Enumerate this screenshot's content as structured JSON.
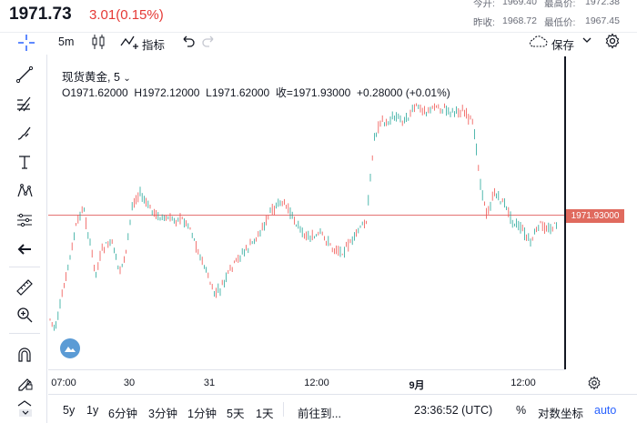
{
  "header": {
    "price": "1971.73",
    "change": "3.01(0.15%)",
    "stats": {
      "open_label": "今开:",
      "open": "1969.40",
      "high_label": "最高价:",
      "high": "1972.38",
      "prev_label": "昨收:",
      "prev": "1968.72",
      "low_label": "最低价:",
      "low": "1967.45"
    }
  },
  "toolbar": {
    "interval": "5m",
    "indicators": "指标",
    "save": "保存"
  },
  "legend": {
    "symbol": "现货黄金, 5",
    "o": "O1971.62000",
    "h": "H1972.12000",
    "l": "L1971.62000",
    "c": "收=1971.93000",
    "chg": "+0.28000",
    "pct": "(+0.01%)"
  },
  "price_tag": "1971.93000",
  "time_axis": [
    "07:00",
    "30",
    "31",
    "12:00",
    "9月",
    "12:00"
  ],
  "bottom": {
    "ranges": [
      "5y",
      "1y",
      "6分钟",
      "3分钟",
      "1分钟",
      "5天",
      "1天"
    ],
    "goto": "前往到...",
    "time": "23:36:52 (UTC)",
    "percent": "%",
    "log": "对数坐标",
    "auto": "auto"
  },
  "colors": {
    "up": "#26a69a",
    "down": "#ef5350",
    "price_line": "#e57373",
    "accent": "#2962ff"
  }
}
